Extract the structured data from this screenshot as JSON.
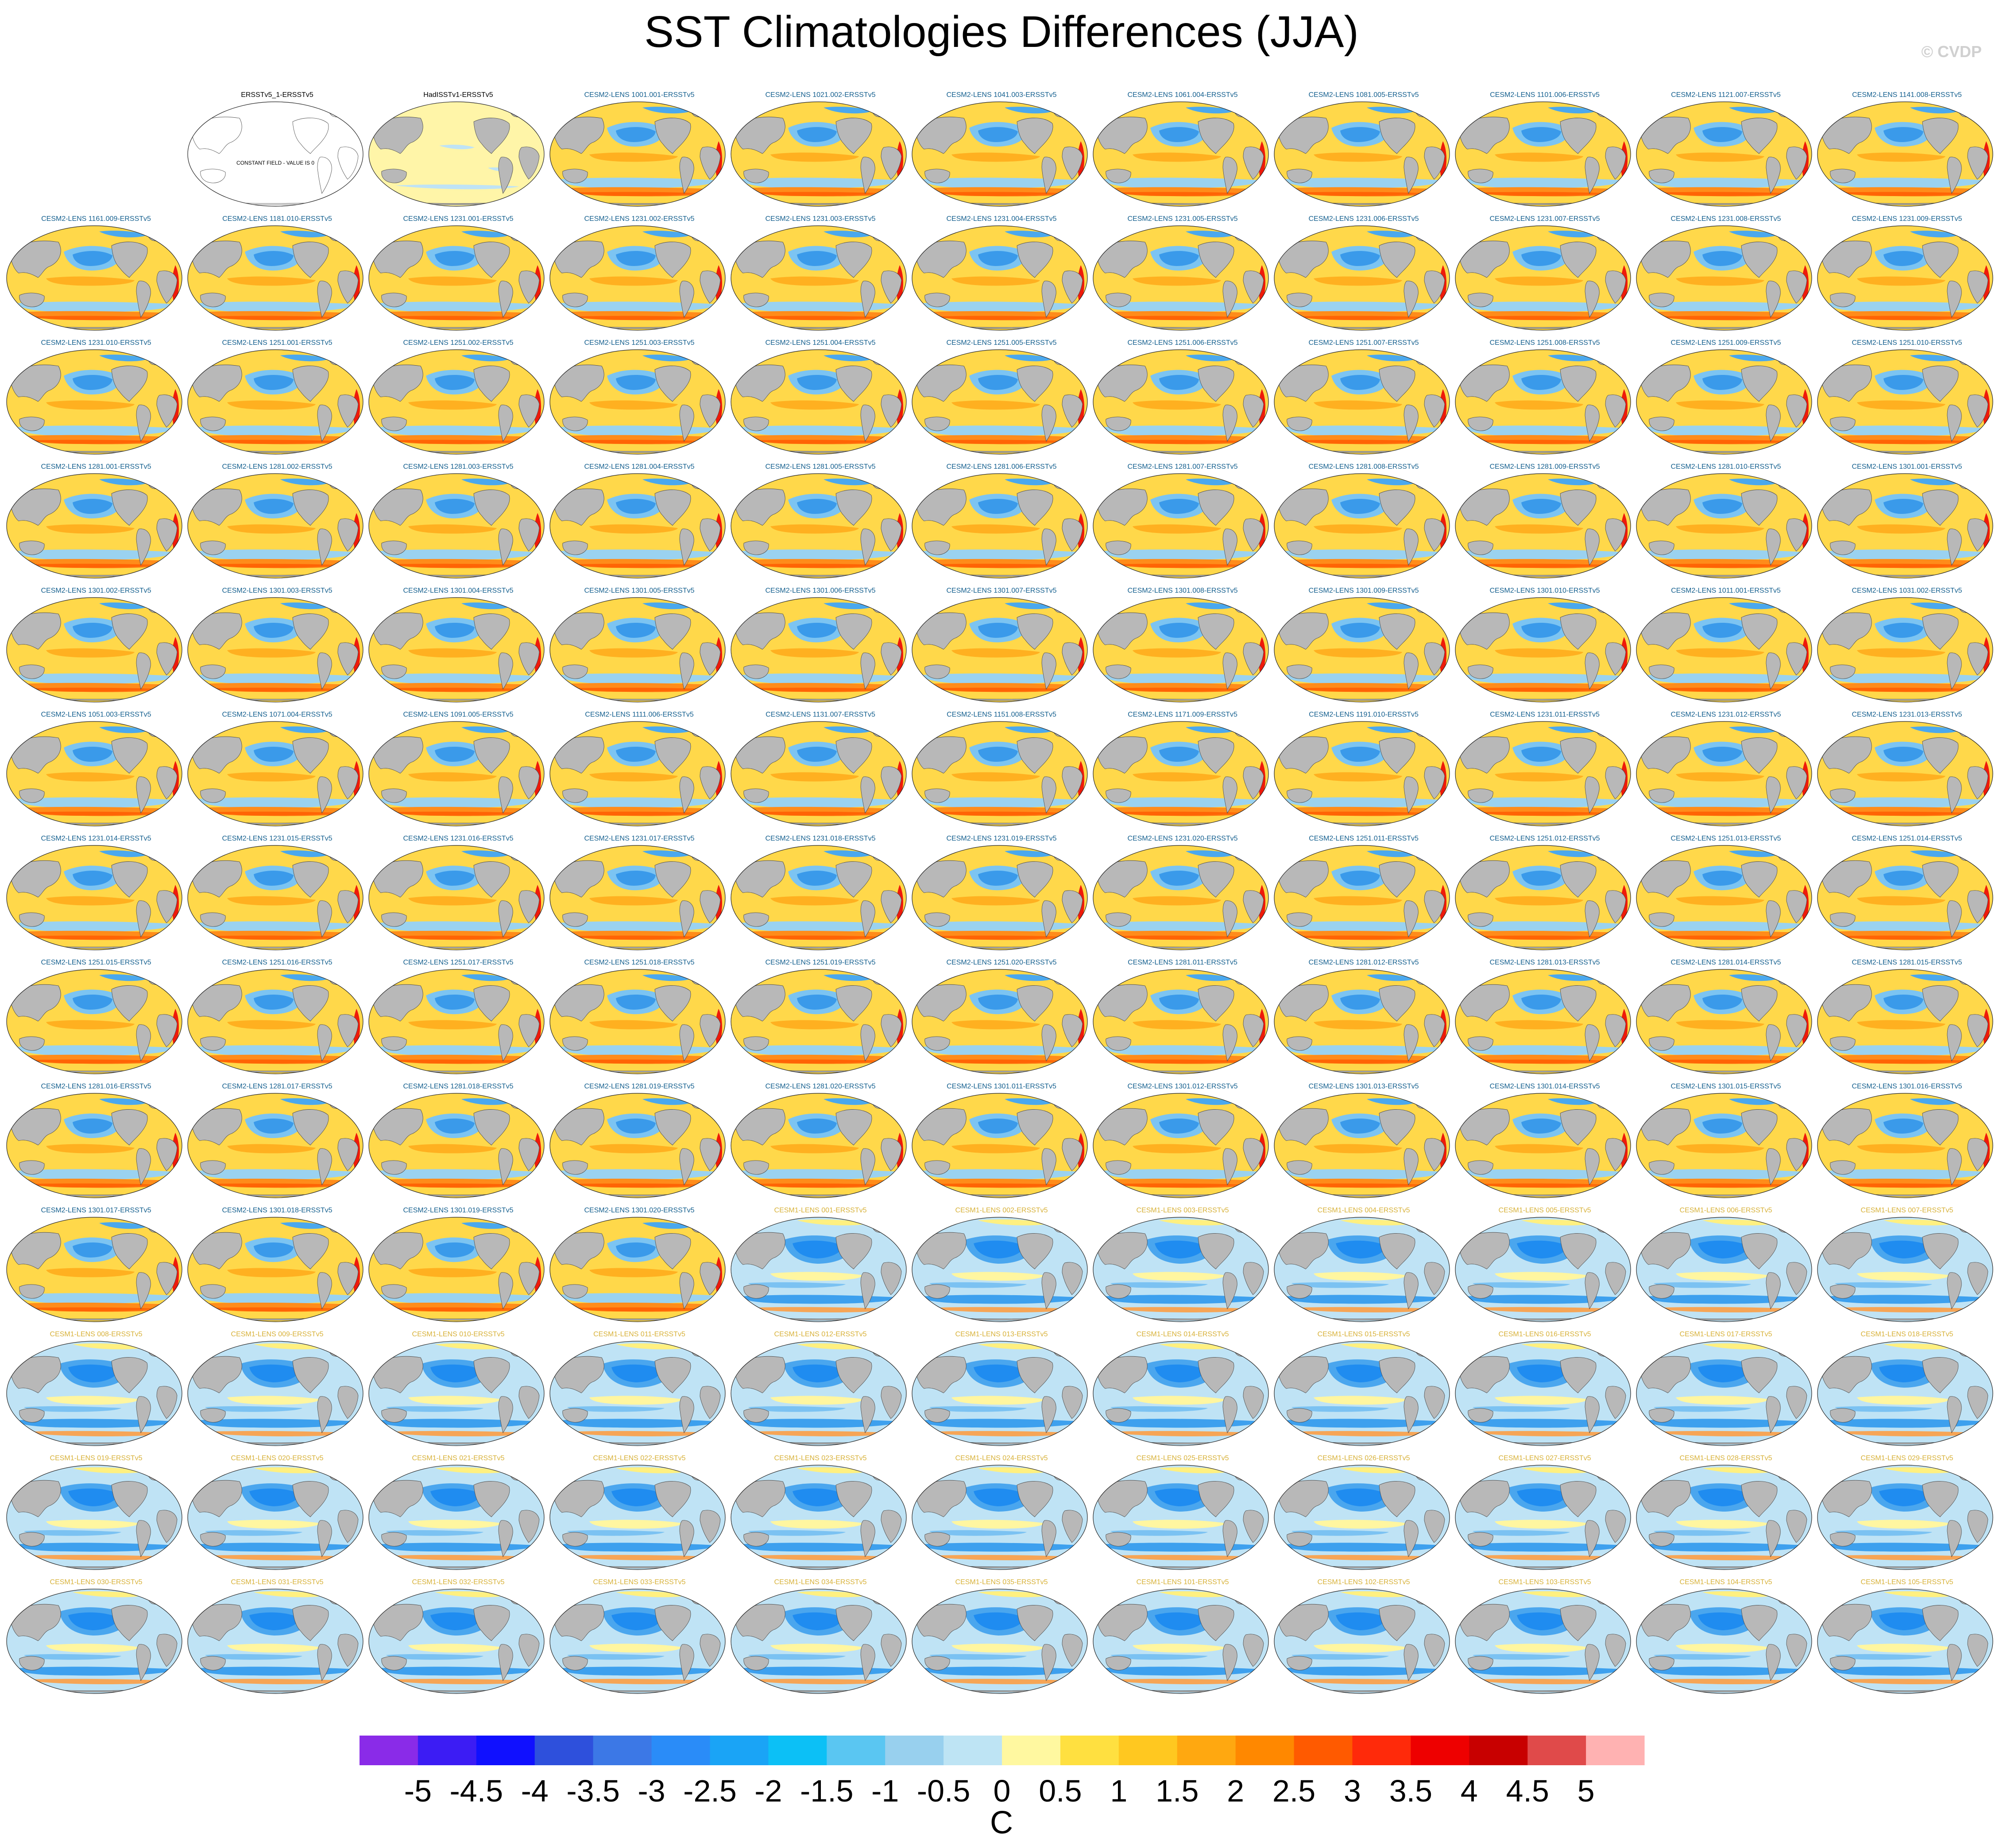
{
  "figure": {
    "title": "SST Climatologies Differences (JJA)",
    "watermark": "© CVDP"
  },
  "colors": {
    "cesm2_title": "#15608f",
    "cesm1_title": "#d8b23a",
    "land": "#b8b8b8"
  },
  "chart_data": {
    "type": "heatmap",
    "description": "map-panel grid",
    "layout": {
      "rows": 13,
      "cols": 11
    },
    "panels": [
      {
        "title": "ERSSTv5_1-ERSSTv5",
        "kind": "constant",
        "label": "CONSTANT FIELD - VALUE IS 0"
      },
      {
        "title": "HadISSTv1-ERSSTv5",
        "kind": "had"
      },
      {
        "title": "CESM2-LENS 1001.001-ERSSTv5",
        "kind": "cesm2"
      },
      {
        "title": "CESM2-LENS 1021.002-ERSSTv5",
        "kind": "cesm2"
      },
      {
        "title": "CESM2-LENS 1041.003-ERSSTv5",
        "kind": "cesm2"
      },
      {
        "title": "CESM2-LENS 1061.004-ERSSTv5",
        "kind": "cesm2"
      },
      {
        "title": "CESM2-LENS 1081.005-ERSSTv5",
        "kind": "cesm2"
      },
      {
        "title": "CESM2-LENS 1101.006-ERSSTv5",
        "kind": "cesm2"
      },
      {
        "title": "CESM2-LENS 1121.007-ERSSTv5",
        "kind": "cesm2"
      },
      {
        "title": "CESM2-LENS 1141.008-ERSSTv5",
        "kind": "cesm2"
      },
      {
        "title": "CESM2-LENS 1161.009-ERSSTv5",
        "kind": "cesm2"
      },
      {
        "title": "CESM2-LENS 1181.010-ERSSTv5",
        "kind": "cesm2"
      },
      {
        "title": "CESM2-LENS 1231.001-ERSSTv5",
        "kind": "cesm2"
      },
      {
        "title": "CESM2-LENS 1231.002-ERSSTv5",
        "kind": "cesm2"
      },
      {
        "title": "CESM2-LENS 1231.003-ERSSTv5",
        "kind": "cesm2"
      },
      {
        "title": "CESM2-LENS 1231.004-ERSSTv5",
        "kind": "cesm2"
      },
      {
        "title": "CESM2-LENS 1231.005-ERSSTv5",
        "kind": "cesm2"
      },
      {
        "title": "CESM2-LENS 1231.006-ERSSTv5",
        "kind": "cesm2"
      },
      {
        "title": "CESM2-LENS 1231.007-ERSSTv5",
        "kind": "cesm2"
      },
      {
        "title": "CESM2-LENS 1231.008-ERSSTv5",
        "kind": "cesm2"
      },
      {
        "title": "CESM2-LENS 1231.009-ERSSTv5",
        "kind": "cesm2"
      },
      {
        "title": "CESM2-LENS 1231.010-ERSSTv5",
        "kind": "cesm2"
      },
      {
        "title": "CESM2-LENS 1251.001-ERSSTv5",
        "kind": "cesm2"
      },
      {
        "title": "CESM2-LENS 1251.002-ERSSTv5",
        "kind": "cesm2"
      },
      {
        "title": "CESM2-LENS 1251.003-ERSSTv5",
        "kind": "cesm2"
      },
      {
        "title": "CESM2-LENS 1251.004-ERSSTv5",
        "kind": "cesm2"
      },
      {
        "title": "CESM2-LENS 1251.005-ERSSTv5",
        "kind": "cesm2"
      },
      {
        "title": "CESM2-LENS 1251.006-ERSSTv5",
        "kind": "cesm2"
      },
      {
        "title": "CESM2-LENS 1251.007-ERSSTv5",
        "kind": "cesm2"
      },
      {
        "title": "CESM2-LENS 1251.008-ERSSTv5",
        "kind": "cesm2"
      },
      {
        "title": "CESM2-LENS 1251.009-ERSSTv5",
        "kind": "cesm2"
      },
      {
        "title": "CESM2-LENS 1251.010-ERSSTv5",
        "kind": "cesm2"
      },
      {
        "title": "CESM2-LENS 1281.001-ERSSTv5",
        "kind": "cesm2"
      },
      {
        "title": "CESM2-LENS 1281.002-ERSSTv5",
        "kind": "cesm2"
      },
      {
        "title": "CESM2-LENS 1281.003-ERSSTv5",
        "kind": "cesm2"
      },
      {
        "title": "CESM2-LENS 1281.004-ERSSTv5",
        "kind": "cesm2"
      },
      {
        "title": "CESM2-LENS 1281.005-ERSSTv5",
        "kind": "cesm2"
      },
      {
        "title": "CESM2-LENS 1281.006-ERSSTv5",
        "kind": "cesm2"
      },
      {
        "title": "CESM2-LENS 1281.007-ERSSTv5",
        "kind": "cesm2"
      },
      {
        "title": "CESM2-LENS 1281.008-ERSSTv5",
        "kind": "cesm2"
      },
      {
        "title": "CESM2-LENS 1281.009-ERSSTv5",
        "kind": "cesm2"
      },
      {
        "title": "CESM2-LENS 1281.010-ERSSTv5",
        "kind": "cesm2"
      },
      {
        "title": "CESM2-LENS 1301.001-ERSSTv5",
        "kind": "cesm2"
      },
      {
        "title": "CESM2-LENS 1301.002-ERSSTv5",
        "kind": "cesm2"
      },
      {
        "title": "CESM2-LENS 1301.003-ERSSTv5",
        "kind": "cesm2"
      },
      {
        "title": "CESM2-LENS 1301.004-ERSSTv5",
        "kind": "cesm2"
      },
      {
        "title": "CESM2-LENS 1301.005-ERSSTv5",
        "kind": "cesm2"
      },
      {
        "title": "CESM2-LENS 1301.006-ERSSTv5",
        "kind": "cesm2"
      },
      {
        "title": "CESM2-LENS 1301.007-ERSSTv5",
        "kind": "cesm2"
      },
      {
        "title": "CESM2-LENS 1301.008-ERSSTv5",
        "kind": "cesm2"
      },
      {
        "title": "CESM2-LENS 1301.009-ERSSTv5",
        "kind": "cesm2"
      },
      {
        "title": "CESM2-LENS 1301.010-ERSSTv5",
        "kind": "cesm2"
      },
      {
        "title": "CESM2-LENS 1011.001-ERSSTv5",
        "kind": "cesm2"
      },
      {
        "title": "CESM2-LENS 1031.002-ERSSTv5",
        "kind": "cesm2"
      },
      {
        "title": "CESM2-LENS 1051.003-ERSSTv5",
        "kind": "cesm2"
      },
      {
        "title": "CESM2-LENS 1071.004-ERSSTv5",
        "kind": "cesm2"
      },
      {
        "title": "CESM2-LENS 1091.005-ERSSTv5",
        "kind": "cesm2"
      },
      {
        "title": "CESM2-LENS 1111.006-ERSSTv5",
        "kind": "cesm2"
      },
      {
        "title": "CESM2-LENS 1131.007-ERSSTv5",
        "kind": "cesm2"
      },
      {
        "title": "CESM2-LENS 1151.008-ERSSTv5",
        "kind": "cesm2"
      },
      {
        "title": "CESM2-LENS 1171.009-ERSSTv5",
        "kind": "cesm2"
      },
      {
        "title": "CESM2-LENS 1191.010-ERSSTv5",
        "kind": "cesm2"
      },
      {
        "title": "CESM2-LENS 1231.011-ERSSTv5",
        "kind": "cesm2"
      },
      {
        "title": "CESM2-LENS 1231.012-ERSSTv5",
        "kind": "cesm2"
      },
      {
        "title": "CESM2-LENS 1231.013-ERSSTv5",
        "kind": "cesm2"
      },
      {
        "title": "CESM2-LENS 1231.014-ERSSTv5",
        "kind": "cesm2"
      },
      {
        "title": "CESM2-LENS 1231.015-ERSSTv5",
        "kind": "cesm2"
      },
      {
        "title": "CESM2-LENS 1231.016-ERSSTv5",
        "kind": "cesm2"
      },
      {
        "title": "CESM2-LENS 1231.017-ERSSTv5",
        "kind": "cesm2"
      },
      {
        "title": "CESM2-LENS 1231.018-ERSSTv5",
        "kind": "cesm2"
      },
      {
        "title": "CESM2-LENS 1231.019-ERSSTv5",
        "kind": "cesm2"
      },
      {
        "title": "CESM2-LENS 1231.020-ERSSTv5",
        "kind": "cesm2"
      },
      {
        "title": "CESM2-LENS 1251.011-ERSSTv5",
        "kind": "cesm2"
      },
      {
        "title": "CESM2-LENS 1251.012-ERSSTv5",
        "kind": "cesm2"
      },
      {
        "title": "CESM2-LENS 1251.013-ERSSTv5",
        "kind": "cesm2"
      },
      {
        "title": "CESM2-LENS 1251.014-ERSSTv5",
        "kind": "cesm2"
      },
      {
        "title": "CESM2-LENS 1251.015-ERSSTv5",
        "kind": "cesm2"
      },
      {
        "title": "CESM2-LENS 1251.016-ERSSTv5",
        "kind": "cesm2"
      },
      {
        "title": "CESM2-LENS 1251.017-ERSSTv5",
        "kind": "cesm2"
      },
      {
        "title": "CESM2-LENS 1251.018-ERSSTv5",
        "kind": "cesm2"
      },
      {
        "title": "CESM2-LENS 1251.019-ERSSTv5",
        "kind": "cesm2"
      },
      {
        "title": "CESM2-LENS 1251.020-ERSSTv5",
        "kind": "cesm2"
      },
      {
        "title": "CESM2-LENS 1281.011-ERSSTv5",
        "kind": "cesm2"
      },
      {
        "title": "CESM2-LENS 1281.012-ERSSTv5",
        "kind": "cesm2"
      },
      {
        "title": "CESM2-LENS 1281.013-ERSSTv5",
        "kind": "cesm2"
      },
      {
        "title": "CESM2-LENS 1281.014-ERSSTv5",
        "kind": "cesm2"
      },
      {
        "title": "CESM2-LENS 1281.015-ERSSTv5",
        "kind": "cesm2"
      },
      {
        "title": "CESM2-LENS 1281.016-ERSSTv5",
        "kind": "cesm2"
      },
      {
        "title": "CESM2-LENS 1281.017-ERSSTv5",
        "kind": "cesm2"
      },
      {
        "title": "CESM2-LENS 1281.018-ERSSTv5",
        "kind": "cesm2"
      },
      {
        "title": "CESM2-LENS 1281.019-ERSSTv5",
        "kind": "cesm2"
      },
      {
        "title": "CESM2-LENS 1281.020-ERSSTv5",
        "kind": "cesm2"
      },
      {
        "title": "CESM2-LENS 1301.011-ERSSTv5",
        "kind": "cesm2"
      },
      {
        "title": "CESM2-LENS 1301.012-ERSSTv5",
        "kind": "cesm2"
      },
      {
        "title": "CESM2-LENS 1301.013-ERSSTv5",
        "kind": "cesm2"
      },
      {
        "title": "CESM2-LENS 1301.014-ERSSTv5",
        "kind": "cesm2"
      },
      {
        "title": "CESM2-LENS 1301.015-ERSSTv5",
        "kind": "cesm2"
      },
      {
        "title": "CESM2-LENS 1301.016-ERSSTv5",
        "kind": "cesm2"
      },
      {
        "title": "CESM2-LENS 1301.017-ERSSTv5",
        "kind": "cesm2"
      },
      {
        "title": "CESM2-LENS 1301.018-ERSSTv5",
        "kind": "cesm2"
      },
      {
        "title": "CESM2-LENS 1301.019-ERSSTv5",
        "kind": "cesm2"
      },
      {
        "title": "CESM2-LENS 1301.020-ERSSTv5",
        "kind": "cesm2"
      },
      {
        "title": "CESM1-LENS 001-ERSSTv5",
        "kind": "cesm1"
      },
      {
        "title": "CESM1-LENS 002-ERSSTv5",
        "kind": "cesm1"
      },
      {
        "title": "CESM1-LENS 003-ERSSTv5",
        "kind": "cesm1"
      },
      {
        "title": "CESM1-LENS 004-ERSSTv5",
        "kind": "cesm1"
      },
      {
        "title": "CESM1-LENS 005-ERSSTv5",
        "kind": "cesm1"
      },
      {
        "title": "CESM1-LENS 006-ERSSTv5",
        "kind": "cesm1"
      },
      {
        "title": "CESM1-LENS 007-ERSSTv5",
        "kind": "cesm1"
      },
      {
        "title": "CESM1-LENS 008-ERSSTv5",
        "kind": "cesm1"
      },
      {
        "title": "CESM1-LENS 009-ERSSTv5",
        "kind": "cesm1"
      },
      {
        "title": "CESM1-LENS 010-ERSSTv5",
        "kind": "cesm1"
      },
      {
        "title": "CESM1-LENS 011-ERSSTv5",
        "kind": "cesm1"
      },
      {
        "title": "CESM1-LENS 012-ERSSTv5",
        "kind": "cesm1"
      },
      {
        "title": "CESM1-LENS 013-ERSSTv5",
        "kind": "cesm1"
      },
      {
        "title": "CESM1-LENS 014-ERSSTv5",
        "kind": "cesm1"
      },
      {
        "title": "CESM1-LENS 015-ERSSTv5",
        "kind": "cesm1"
      },
      {
        "title": "CESM1-LENS 016-ERSSTv5",
        "kind": "cesm1"
      },
      {
        "title": "CESM1-LENS 017-ERSSTv5",
        "kind": "cesm1"
      },
      {
        "title": "CESM1-LENS 018-ERSSTv5",
        "kind": "cesm1"
      },
      {
        "title": "CESM1-LENS 019-ERSSTv5",
        "kind": "cesm1"
      },
      {
        "title": "CESM1-LENS 020-ERSSTv5",
        "kind": "cesm1"
      },
      {
        "title": "CESM1-LENS 021-ERSSTv5",
        "kind": "cesm1"
      },
      {
        "title": "CESM1-LENS 022-ERSSTv5",
        "kind": "cesm1"
      },
      {
        "title": "CESM1-LENS 023-ERSSTv5",
        "kind": "cesm1"
      },
      {
        "title": "CESM1-LENS 024-ERSSTv5",
        "kind": "cesm1"
      },
      {
        "title": "CESM1-LENS 025-ERSSTv5",
        "kind": "cesm1"
      },
      {
        "title": "CESM1-LENS 026-ERSSTv5",
        "kind": "cesm1"
      },
      {
        "title": "CESM1-LENS 027-ERSSTv5",
        "kind": "cesm1"
      },
      {
        "title": "CESM1-LENS 028-ERSSTv5",
        "kind": "cesm1"
      },
      {
        "title": "CESM1-LENS 029-ERSSTv5",
        "kind": "cesm1"
      },
      {
        "title": "CESM1-LENS 030-ERSSTv5",
        "kind": "cesm1"
      },
      {
        "title": "CESM1-LENS 031-ERSSTv5",
        "kind": "cesm1"
      },
      {
        "title": "CESM1-LENS 032-ERSSTv5",
        "kind": "cesm1"
      },
      {
        "title": "CESM1-LENS 033-ERSSTv5",
        "kind": "cesm1"
      },
      {
        "title": "CESM1-LENS 034-ERSSTv5",
        "kind": "cesm1"
      },
      {
        "title": "CESM1-LENS 035-ERSSTv5",
        "kind": "cesm1"
      },
      {
        "title": "CESM1-LENS 101-ERSSTv5",
        "kind": "cesm1"
      },
      {
        "title": "CESM1-LENS 102-ERSSTv5",
        "kind": "cesm1"
      },
      {
        "title": "CESM1-LENS 103-ERSSTv5",
        "kind": "cesm1"
      },
      {
        "title": "CESM1-LENS 104-ERSSTv5",
        "kind": "cesm1"
      },
      {
        "title": "CESM1-LENS 105-ERSSTv5",
        "kind": "cesm1"
      }
    ],
    "colorbar": {
      "unit": "C",
      "levels": [
        -5,
        -4.5,
        -4,
        -3.5,
        -3,
        -2.5,
        -2,
        -1.5,
        -1,
        -0.5,
        0,
        0.5,
        1,
        1.5,
        2,
        2.5,
        3,
        3.5,
        4,
        4.5,
        5
      ],
      "tick_labels": [
        "-5",
        "-4.5",
        "-4",
        "-3.5",
        "-3",
        "-2.5",
        "-2",
        "-1.5",
        "-1",
        "-0.5",
        "0",
        "0.5",
        "1",
        "1.5",
        "2",
        "2.5",
        "3",
        "3.5",
        "4",
        "4.5",
        "5"
      ],
      "colors": [
        "#8a2be8",
        "#3c1cf4",
        "#1010ff",
        "#2e50dc",
        "#3c78e6",
        "#2a8cf8",
        "#1aa4f6",
        "#0cc0f6",
        "#5ac6f2",
        "#98d0ee",
        "#bee4f4",
        "#fff8a0",
        "#ffe040",
        "#ffc820",
        "#ffa810",
        "#ff8800",
        "#ff5a00",
        "#ff2a0a",
        "#ee0000",
        "#c80000",
        "#e04a4a",
        "#ffb2b2"
      ]
    }
  }
}
